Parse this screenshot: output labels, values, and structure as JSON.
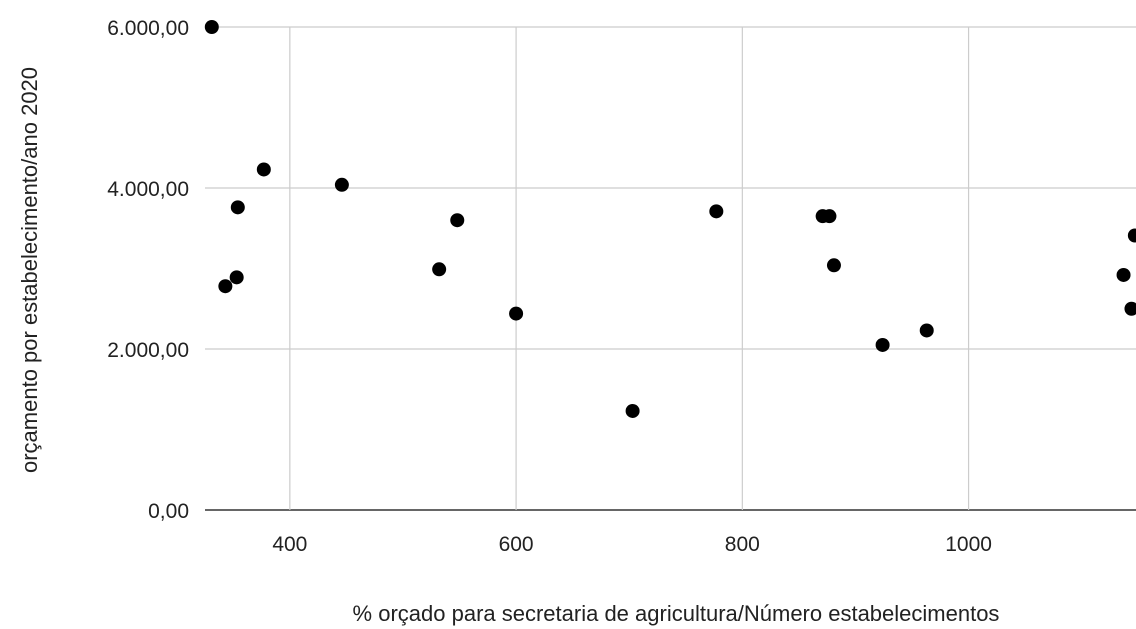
{
  "chart_data": {
    "type": "scatter",
    "title": "",
    "xlabel": "% orçado para secretaria de agricultura/Número estabelecimentos",
    "ylabel": "orçamento por estabelecimento/ano 2020",
    "xlim": [
      325,
      1148
    ],
    "ylim": [
      0,
      6000
    ],
    "x_ticks": [
      400,
      600,
      800,
      1000
    ],
    "x_tick_labels": [
      "400",
      "600",
      "800",
      "1000"
    ],
    "y_ticks": [
      0,
      2000,
      4000,
      6000
    ],
    "y_tick_labels": [
      "0,00",
      "2.000,00",
      "4.000,00",
      "6.000,00"
    ],
    "grid": true,
    "point_color": "#000000",
    "points": [
      {
        "x": 331,
        "y": 6000
      },
      {
        "x": 343,
        "y": 2780
      },
      {
        "x": 353,
        "y": 2890
      },
      {
        "x": 354,
        "y": 3760
      },
      {
        "x": 377,
        "y": 4230
      },
      {
        "x": 446,
        "y": 4040
      },
      {
        "x": 532,
        "y": 2990
      },
      {
        "x": 548,
        "y": 3600
      },
      {
        "x": 600,
        "y": 2440
      },
      {
        "x": 703,
        "y": 1230
      },
      {
        "x": 777,
        "y": 3710
      },
      {
        "x": 871,
        "y": 3650
      },
      {
        "x": 877,
        "y": 3650
      },
      {
        "x": 881,
        "y": 3040
      },
      {
        "x": 924,
        "y": 2050
      },
      {
        "x": 963,
        "y": 2230
      },
      {
        "x": 1137,
        "y": 2920
      },
      {
        "x": 1144,
        "y": 2500
      },
      {
        "x": 1147,
        "y": 3410
      }
    ]
  }
}
